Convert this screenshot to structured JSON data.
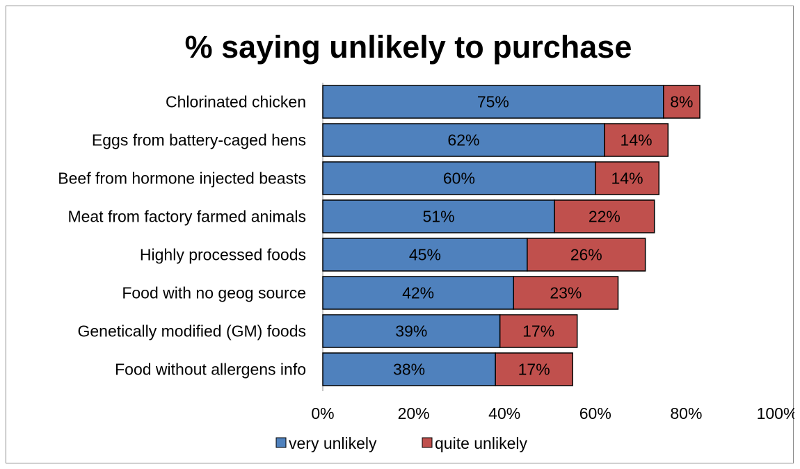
{
  "chart_data": {
    "type": "bar",
    "orientation": "horizontal",
    "stacked": true,
    "title": "% saying unlikely to purchase",
    "xlabel": "",
    "ylabel": "",
    "categories": [
      "Chlorinated chicken",
      "Eggs from battery-caged hens",
      "Beef from hormone injected beasts",
      "Meat from factory farmed animals",
      "Highly processed foods",
      "Food with no geog source",
      "Genetically modified (GM) foods",
      "Food without allergens info"
    ],
    "series": [
      {
        "name": "very unlikely",
        "color": "#4f81bd",
        "values": [
          75,
          62,
          60,
          51,
          45,
          42,
          39,
          38
        ],
        "labels": [
          "75%",
          "62%",
          "60%",
          "51%",
          "45%",
          "42%",
          "39%",
          "38%"
        ]
      },
      {
        "name": "quite unlikely",
        "color": "#c0504d",
        "values": [
          8,
          14,
          14,
          22,
          26,
          23,
          17,
          17
        ],
        "labels": [
          "8%",
          "14%",
          "14%",
          "22%",
          "26%",
          "23%",
          "17%",
          "17%"
        ]
      }
    ],
    "xlim": [
      0,
      100
    ],
    "x_ticks": [
      "0%",
      "20%",
      "40%",
      "60%",
      "80%",
      "100%"
    ],
    "grid": false,
    "legend_position": "bottom"
  }
}
